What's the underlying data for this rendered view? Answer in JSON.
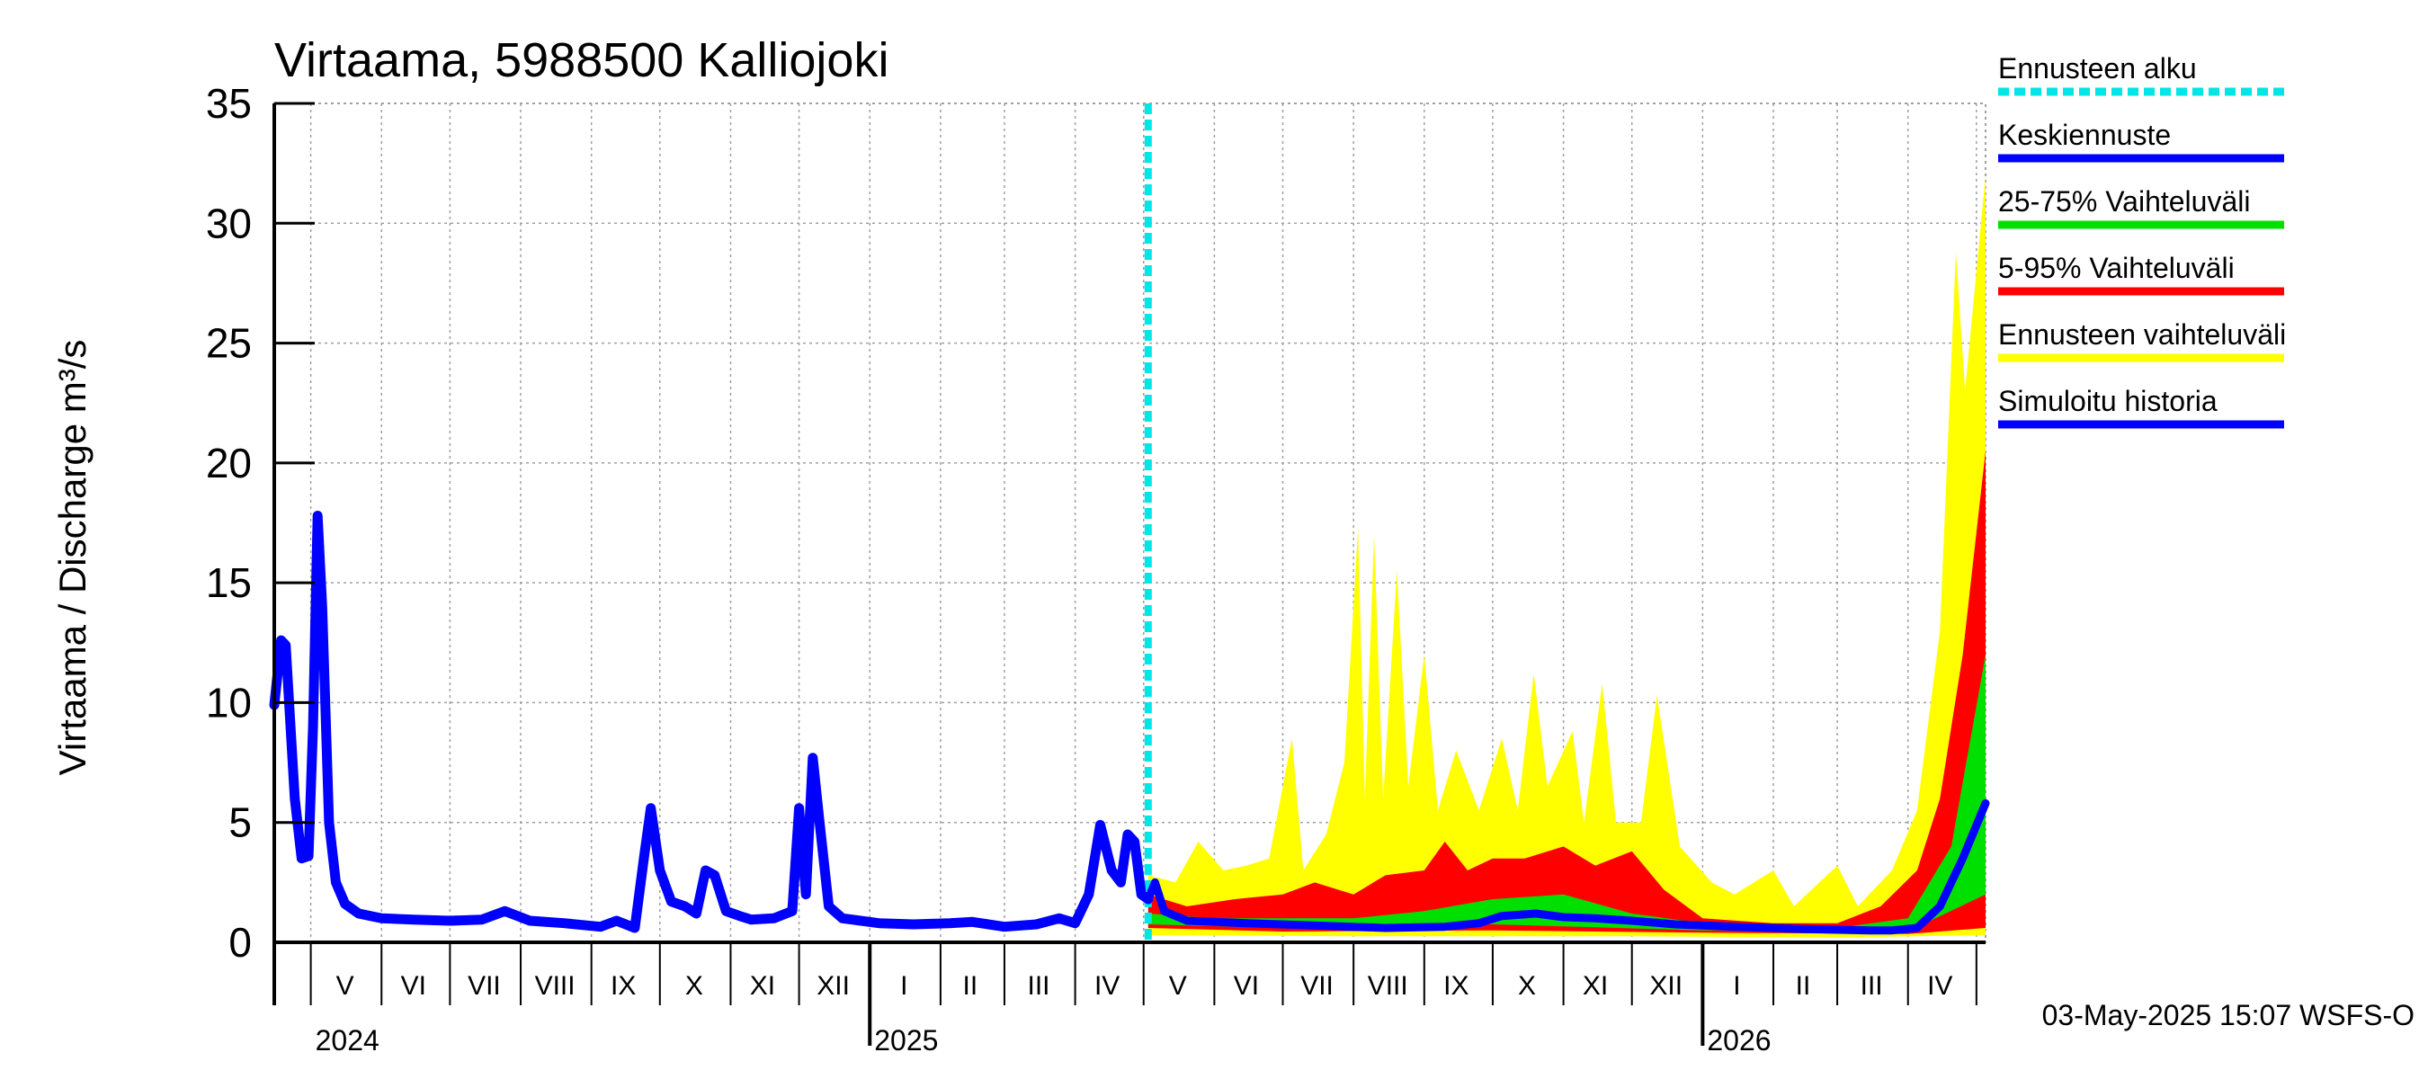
{
  "chart_data": {
    "type": "area",
    "title": "Virtaama, 5988500 Kalliojoki",
    "ylabel": "Virtaama / Discharge     m³/s",
    "ylim": [
      0,
      35
    ],
    "yticks": [
      "0",
      "5",
      "10",
      "15",
      "20",
      "25",
      "30",
      "35"
    ],
    "grid": true,
    "legend_position": "right",
    "x_range": [
      "2024-04-15",
      "2026-05-05"
    ],
    "forecast_start": "2025-05-03",
    "month_labels": [
      {
        "label": "V",
        "date": "2024-05-16"
      },
      {
        "label": "VI",
        "date": "2024-06-15"
      },
      {
        "label": "VII",
        "date": "2024-07-16"
      },
      {
        "label": "VIII",
        "date": "2024-08-16"
      },
      {
        "label": "IX",
        "date": "2024-09-15"
      },
      {
        "label": "X",
        "date": "2024-10-16"
      },
      {
        "label": "XI",
        "date": "2024-11-15"
      },
      {
        "label": "XII",
        "date": "2024-12-16"
      },
      {
        "label": "I",
        "date": "2025-01-16"
      },
      {
        "label": "II",
        "date": "2025-02-14"
      },
      {
        "label": "III",
        "date": "2025-03-16"
      },
      {
        "label": "IV",
        "date": "2025-04-15"
      },
      {
        "label": "V",
        "date": "2025-05-16"
      },
      {
        "label": "VI",
        "date": "2025-06-15"
      },
      {
        "label": "VII",
        "date": "2025-07-16"
      },
      {
        "label": "VIII",
        "date": "2025-08-16"
      },
      {
        "label": "IX",
        "date": "2025-09-15"
      },
      {
        "label": "X",
        "date": "2025-10-16"
      },
      {
        "label": "XI",
        "date": "2025-11-15"
      },
      {
        "label": "XII",
        "date": "2025-12-16"
      },
      {
        "label": "I",
        "date": "2026-01-16"
      },
      {
        "label": "II",
        "date": "2026-02-14"
      },
      {
        "label": "III",
        "date": "2026-03-16"
      },
      {
        "label": "IV",
        "date": "2026-04-15"
      }
    ],
    "year_labels": [
      {
        "label": "2024",
        "date": "2024-05-01"
      },
      {
        "label": "2025",
        "date": "2025-01-01"
      },
      {
        "label": "2026",
        "date": "2026-01-01"
      }
    ],
    "legend": [
      {
        "label": "Ennusteen alku",
        "color": "#00e5e5",
        "style": "dashed"
      },
      {
        "label": "Keskiennuste",
        "color": "#0000ff",
        "style": "solid"
      },
      {
        "label": "25-75% Vaihteluväli",
        "color": "#00e000",
        "style": "solid"
      },
      {
        "label": "5-95% Vaihteluväli",
        "color": "#ff0000",
        "style": "solid"
      },
      {
        "label": "Ennusteen vaihteluväli",
        "color": "#ffff00",
        "style": "solid"
      },
      {
        "label": "Simuloitu historia",
        "color": "#0000ff",
        "style": "solid"
      }
    ],
    "colors": {
      "history": "#0000ff",
      "median": "#0000ff",
      "range_full": "#ffff00",
      "range_5_95": "#ff0000",
      "range_25_75": "#00e000",
      "forecast_start": "#00e5e5",
      "grid": "#a0a0a0"
    },
    "series": [
      {
        "name": "Simuloitu historia",
        "points": [
          [
            "2024-04-15",
            9.9
          ],
          [
            "2024-04-18",
            12.6
          ],
          [
            "2024-04-20",
            12.4
          ],
          [
            "2024-04-24",
            6.0
          ],
          [
            "2024-04-27",
            3.5
          ],
          [
            "2024-04-30",
            3.6
          ],
          [
            "2024-05-02",
            9.0
          ],
          [
            "2024-05-04",
            17.8
          ],
          [
            "2024-05-06",
            14.0
          ],
          [
            "2024-05-09",
            5.0
          ],
          [
            "2024-05-12",
            2.5
          ],
          [
            "2024-05-16",
            1.6
          ],
          [
            "2024-05-22",
            1.2
          ],
          [
            "2024-06-01",
            1.0
          ],
          [
            "2024-06-15",
            0.95
          ],
          [
            "2024-07-01",
            0.9
          ],
          [
            "2024-07-15",
            0.95
          ],
          [
            "2024-07-25",
            1.3
          ],
          [
            "2024-08-05",
            0.9
          ],
          [
            "2024-08-20",
            0.8
          ],
          [
            "2024-09-05",
            0.65
          ],
          [
            "2024-09-12",
            0.9
          ],
          [
            "2024-09-20",
            0.6
          ],
          [
            "2024-09-24",
            3.5
          ],
          [
            "2024-09-27",
            5.6
          ],
          [
            "2024-10-01",
            3.0
          ],
          [
            "2024-10-06",
            1.7
          ],
          [
            "2024-10-12",
            1.5
          ],
          [
            "2024-10-17",
            1.2
          ],
          [
            "2024-10-21",
            3.0
          ],
          [
            "2024-10-25",
            2.8
          ],
          [
            "2024-10-30",
            1.3
          ],
          [
            "2024-11-05",
            1.1
          ],
          [
            "2024-11-10",
            0.95
          ],
          [
            "2024-11-20",
            1.0
          ],
          [
            "2024-11-28",
            1.3
          ],
          [
            "2024-12-01",
            5.6
          ],
          [
            "2024-12-04",
            2.0
          ],
          [
            "2024-12-07",
            7.7
          ],
          [
            "2024-12-10",
            5.0
          ],
          [
            "2024-12-14",
            1.5
          ],
          [
            "2024-12-20",
            1.0
          ],
          [
            "2025-01-05",
            0.8
          ],
          [
            "2025-01-20",
            0.75
          ],
          [
            "2025-02-05",
            0.8
          ],
          [
            "2025-02-15",
            0.85
          ],
          [
            "2025-03-01",
            0.65
          ],
          [
            "2025-03-15",
            0.75
          ],
          [
            "2025-03-25",
            1.0
          ],
          [
            "2025-04-01",
            0.8
          ],
          [
            "2025-04-07",
            2.0
          ],
          [
            "2025-04-12",
            4.9
          ],
          [
            "2025-04-17",
            3.0
          ],
          [
            "2025-04-21",
            2.5
          ],
          [
            "2025-04-24",
            4.5
          ],
          [
            "2025-04-27",
            4.2
          ],
          [
            "2025-04-30",
            2.0
          ],
          [
            "2025-05-03",
            1.8
          ]
        ]
      },
      {
        "name": "Keskiennuste",
        "points": [
          [
            "2025-05-03",
            1.8
          ],
          [
            "2025-05-06",
            2.5
          ],
          [
            "2025-05-10",
            1.3
          ],
          [
            "2025-05-20",
            0.9
          ],
          [
            "2025-06-15",
            0.8
          ],
          [
            "2025-07-15",
            0.7
          ],
          [
            "2025-08-15",
            0.6
          ],
          [
            "2025-09-10",
            0.65
          ],
          [
            "2025-09-25",
            0.8
          ],
          [
            "2025-10-05",
            1.1
          ],
          [
            "2025-10-20",
            1.2
          ],
          [
            "2025-11-01",
            1.05
          ],
          [
            "2025-11-15",
            1.0
          ],
          [
            "2025-12-01",
            0.9
          ],
          [
            "2025-12-20",
            0.75
          ],
          [
            "2026-01-15",
            0.65
          ],
          [
            "2026-02-15",
            0.55
          ],
          [
            "2026-03-15",
            0.5
          ],
          [
            "2026-03-25",
            0.5
          ],
          [
            "2026-04-05",
            0.6
          ],
          [
            "2026-04-15",
            1.5
          ],
          [
            "2026-04-25",
            3.5
          ],
          [
            "2026-05-05",
            5.8
          ]
        ]
      },
      {
        "name": "Ennusteen vaihteluväli",
        "lower": [
          [
            "2025-05-03",
            0.3
          ],
          [
            "2025-08-01",
            0.25
          ],
          [
            "2025-12-01",
            0.25
          ],
          [
            "2026-03-01",
            0.2
          ],
          [
            "2026-05-05",
            0.3
          ]
        ],
        "upper": [
          [
            "2025-05-03",
            2.8
          ],
          [
            "2025-05-15",
            2.5
          ],
          [
            "2025-05-25",
            4.2
          ],
          [
            "2025-06-05",
            3.0
          ],
          [
            "2025-06-15",
            3.2
          ],
          [
            "2025-06-25",
            3.5
          ],
          [
            "2025-07-05",
            8.5
          ],
          [
            "2025-07-10",
            3.0
          ],
          [
            "2025-07-20",
            4.5
          ],
          [
            "2025-07-28",
            7.5
          ],
          [
            "2025-08-03",
            17.3
          ],
          [
            "2025-08-06",
            6.0
          ],
          [
            "2025-08-10",
            17.0
          ],
          [
            "2025-08-14",
            6.0
          ],
          [
            "2025-08-20",
            15.5
          ],
          [
            "2025-08-25",
            6.5
          ],
          [
            "2025-09-01",
            12.0
          ],
          [
            "2025-09-07",
            5.5
          ],
          [
            "2025-09-15",
            8.0
          ],
          [
            "2025-09-25",
            5.5
          ],
          [
            "2025-10-05",
            8.5
          ],
          [
            "2025-10-12",
            5.5
          ],
          [
            "2025-10-19",
            11.2
          ],
          [
            "2025-10-25",
            6.5
          ],
          [
            "2025-11-05",
            8.8
          ],
          [
            "2025-11-10",
            5.0
          ],
          [
            "2025-11-18",
            10.8
          ],
          [
            "2025-11-24",
            5.0
          ],
          [
            "2025-12-05",
            5.0
          ],
          [
            "2025-12-12",
            10.3
          ],
          [
            "2025-12-22",
            4.0
          ],
          [
            "2026-01-05",
            2.5
          ],
          [
            "2026-01-15",
            2.0
          ],
          [
            "2026-02-01",
            3.0
          ],
          [
            "2026-02-10",
            1.5
          ],
          [
            "2026-03-01",
            3.2
          ],
          [
            "2026-03-10",
            1.5
          ],
          [
            "2026-03-25",
            3.0
          ],
          [
            "2026-04-05",
            5.5
          ],
          [
            "2026-04-15",
            13.0
          ],
          [
            "2026-04-22",
            28.8
          ],
          [
            "2026-04-26",
            23.0
          ],
          [
            "2026-05-05",
            32.0
          ]
        ]
      },
      {
        "name": "5-95% Vaihteluväli",
        "lower": [
          [
            "2025-05-03",
            0.6
          ],
          [
            "2025-07-01",
            0.45
          ],
          [
            "2025-10-01",
            0.5
          ],
          [
            "2026-01-01",
            0.4
          ],
          [
            "2026-04-01",
            0.35
          ],
          [
            "2026-05-05",
            0.6
          ]
        ],
        "upper": [
          [
            "2025-05-03",
            2.0
          ],
          [
            "2025-05-20",
            1.5
          ],
          [
            "2025-06-10",
            1.8
          ],
          [
            "2025-07-01",
            2.0
          ],
          [
            "2025-07-15",
            2.5
          ],
          [
            "2025-08-01",
            2.0
          ],
          [
            "2025-08-15",
            2.8
          ],
          [
            "2025-09-01",
            3.0
          ],
          [
            "2025-09-10",
            4.2
          ],
          [
            "2025-09-20",
            3.0
          ],
          [
            "2025-10-01",
            3.5
          ],
          [
            "2025-10-15",
            3.5
          ],
          [
            "2025-11-01",
            4.0
          ],
          [
            "2025-11-15",
            3.2
          ],
          [
            "2025-12-01",
            3.8
          ],
          [
            "2025-12-15",
            2.2
          ],
          [
            "2026-01-01",
            1.0
          ],
          [
            "2026-02-01",
            0.8
          ],
          [
            "2026-03-01",
            0.8
          ],
          [
            "2026-03-20",
            1.5
          ],
          [
            "2026-04-05",
            3.0
          ],
          [
            "2026-04-15",
            6.0
          ],
          [
            "2026-04-25",
            12.0
          ],
          [
            "2026-05-05",
            20.5
          ]
        ]
      },
      {
        "name": "25-75% Vaihteluväli",
        "lower": [
          [
            "2025-05-03",
            0.75
          ],
          [
            "2025-07-01",
            0.6
          ],
          [
            "2025-10-01",
            0.75
          ],
          [
            "2026-01-01",
            0.5
          ],
          [
            "2026-04-01",
            0.45
          ],
          [
            "2026-05-05",
            2.0
          ]
        ],
        "upper": [
          [
            "2025-05-03",
            1.2
          ],
          [
            "2025-06-01",
            1.0
          ],
          [
            "2025-07-01",
            1.0
          ],
          [
            "2025-08-01",
            1.0
          ],
          [
            "2025-09-01",
            1.3
          ],
          [
            "2025-10-01",
            1.8
          ],
          [
            "2025-11-01",
            2.0
          ],
          [
            "2025-12-01",
            1.2
          ],
          [
            "2026-01-01",
            0.8
          ],
          [
            "2026-02-01",
            0.7
          ],
          [
            "2026-03-01",
            0.6
          ],
          [
            "2026-04-01",
            1.0
          ],
          [
            "2026-04-20",
            4.0
          ],
          [
            "2026-05-05",
            12.0
          ]
        ]
      }
    ]
  },
  "footer": {
    "timestamp": "03-May-2025 15:07 WSFS-O"
  }
}
